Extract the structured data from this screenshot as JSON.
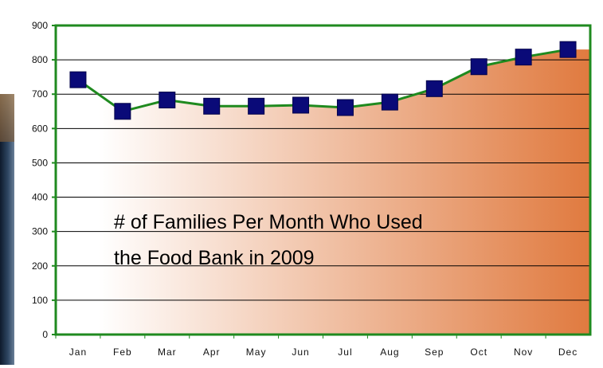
{
  "chart_data": {
    "type": "area",
    "title_lines": [
      "# of Families Per Month Who Used",
      "the Food Bank in 2009"
    ],
    "categories": [
      "Jan",
      "Feb",
      "Mar",
      "Apr",
      "May",
      "Jun",
      "Jul",
      "Aug",
      "Sep",
      "Oct",
      "Nov",
      "Dec"
    ],
    "series": [
      {
        "values": [
          742,
          650,
          683,
          665,
          665,
          668,
          661,
          677,
          716,
          780,
          808,
          830
        ]
      }
    ],
    "ylim": [
      0,
      900
    ],
    "yticks": [
      "0",
      "100",
      "200",
      "300",
      "400",
      "500",
      "600",
      "700",
      "800",
      "900"
    ],
    "grid": true,
    "colors": {
      "line": "#1f8a1f",
      "marker": "#0a0a78",
      "area_start": "#ffffff",
      "area_end": "#e07a3f",
      "gridline": "#000000"
    }
  }
}
